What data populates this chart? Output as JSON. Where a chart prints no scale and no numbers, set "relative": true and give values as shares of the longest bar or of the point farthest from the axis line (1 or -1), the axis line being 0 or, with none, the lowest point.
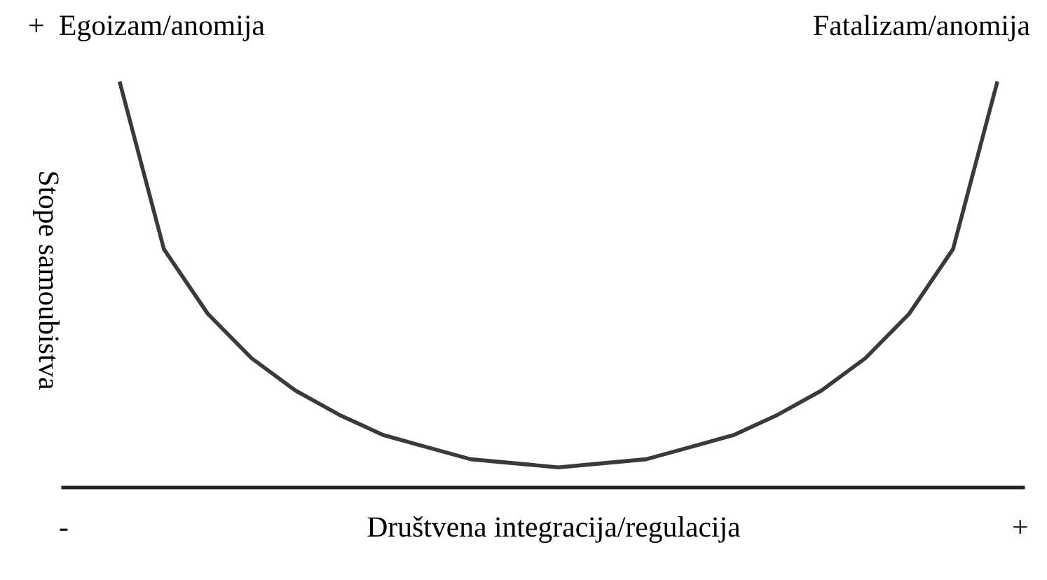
{
  "chart_data": {
    "type": "line",
    "relative": true,
    "xlabel": "Društvena integracija/regulacija",
    "ylabel": "Stope samoubistva",
    "annotations": [
      "+",
      "Egoizam/anomija",
      "Fatalizam/anomija",
      "-",
      "+"
    ],
    "categories": [
      null,
      null,
      null,
      null,
      null,
      null,
      null,
      null,
      null,
      null,
      null,
      null,
      null,
      null,
      null,
      null,
      null,
      null,
      null,
      null,
      null
    ],
    "series": [
      {
        "color": "#3a3a3a",
        "values": [
          1.0,
          0.59,
          0.43,
          0.32,
          0.24,
          0.18,
          0.13,
          0.1,
          0.07,
          0.06,
          0.05,
          0.06,
          0.07,
          0.1,
          0.13,
          0.18,
          0.24,
          0.32,
          0.43,
          0.59,
          1.0
        ]
      }
    ],
    "grid": false,
    "legend": false,
    "marker": "none",
    "line_style": "solid"
  }
}
